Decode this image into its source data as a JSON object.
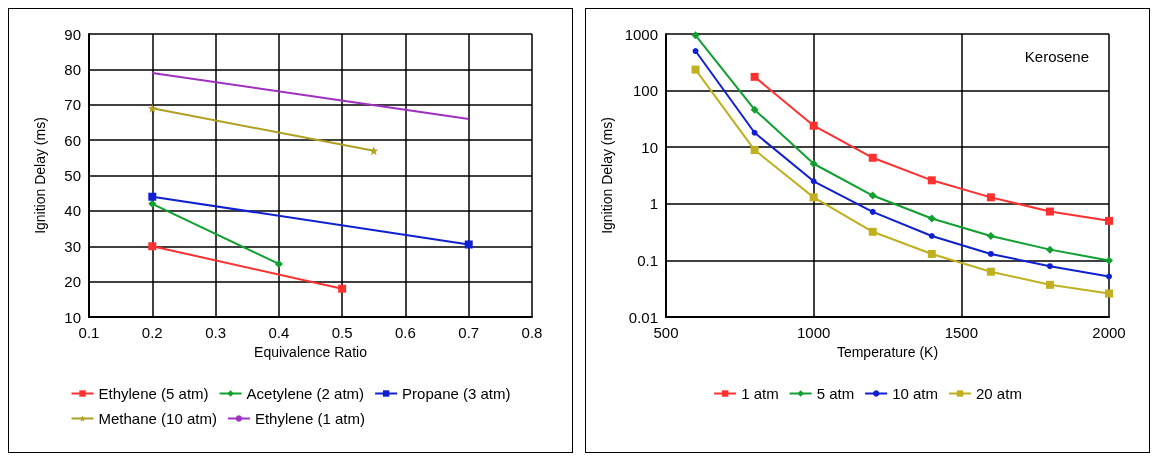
{
  "chart_data": [
    {
      "type": "line",
      "xlabel": "Equivalence Ratio",
      "ylabel": "Ignition Delay (ms)",
      "xlim": [
        0.1,
        0.8
      ],
      "xticks": [
        0.1,
        0.2,
        0.3,
        0.4,
        0.5,
        0.6,
        0.7,
        0.8
      ],
      "ylim": [
        10,
        90
      ],
      "yticks": [
        10,
        20,
        30,
        40,
        50,
        60,
        70,
        80,
        90
      ],
      "grid": true,
      "legend": "bottom",
      "series": [
        {
          "name": "Ethylene (5 atm)",
          "color": "#ff3030",
          "x": [
            0.2,
            0.5
          ],
          "values": [
            30,
            18
          ],
          "marker": "square"
        },
        {
          "name": "Acetylene (2 atm)",
          "color": "#10a030",
          "x": [
            0.2,
            0.4
          ],
          "values": [
            42,
            25
          ],
          "marker": "diamond"
        },
        {
          "name": "Propane (3 atm)",
          "color": "#1020d0",
          "x": [
            0.2,
            0.7
          ],
          "values": [
            44,
            30.5
          ],
          "marker": "square"
        },
        {
          "name": "Methane (10 atm)",
          "color": "#b0a020",
          "x": [
            0.2,
            0.55
          ],
          "values": [
            69,
            57
          ],
          "marker": "star"
        },
        {
          "name": "Ethylene (1 atm)",
          "color": "#a030c0",
          "x": [
            0.2,
            0.7
          ],
          "values": [
            79,
            66
          ],
          "marker": "none"
        }
      ]
    },
    {
      "type": "line",
      "xlabel": "Temperature (K)",
      "ylabel": "Ignition Delay (ms)",
      "xlim": [
        500,
        2000
      ],
      "xticks": [
        500,
        1000,
        1500,
        2000
      ],
      "ylim": [
        0.01,
        1000
      ],
      "yticks": [
        0.01,
        0.1,
        1,
        10,
        100,
        1000
      ],
      "log": "y",
      "grid": true,
      "legend": "bottom",
      "annotations": [
        "Kerosene"
      ],
      "series": [
        {
          "name": "1 atm",
          "color": "#ff3030",
          "x": [
            800,
            1000,
            1200,
            1400,
            1600,
            1800,
            2000
          ],
          "values": [
            175,
            24,
            6.5,
            2.6,
            1.3,
            0.73,
            0.5
          ],
          "marker": "square"
        },
        {
          "name": "5 atm",
          "color": "#10a030",
          "x": [
            600,
            800,
            1000,
            1200,
            1400,
            1600,
            1800,
            2000
          ],
          "values": [
            950,
            46,
            5.1,
            1.4,
            0.55,
            0.27,
            0.155,
            0.1
          ],
          "marker": "diamond"
        },
        {
          "name": "10 atm",
          "color": "#1020d0",
          "x": [
            600,
            800,
            1000,
            1200,
            1400,
            1600,
            1800,
            2000
          ],
          "values": [
            500,
            18,
            2.5,
            0.72,
            0.27,
            0.13,
            0.079,
            0.052
          ],
          "marker": "circle"
        },
        {
          "name": "20 atm",
          "color": "#c0b020",
          "x": [
            600,
            800,
            1000,
            1200,
            1400,
            1600,
            1800,
            2000
          ],
          "values": [
            235,
            8.9,
            1.3,
            0.32,
            0.13,
            0.063,
            0.037,
            0.026
          ],
          "marker": "square"
        }
      ]
    }
  ]
}
